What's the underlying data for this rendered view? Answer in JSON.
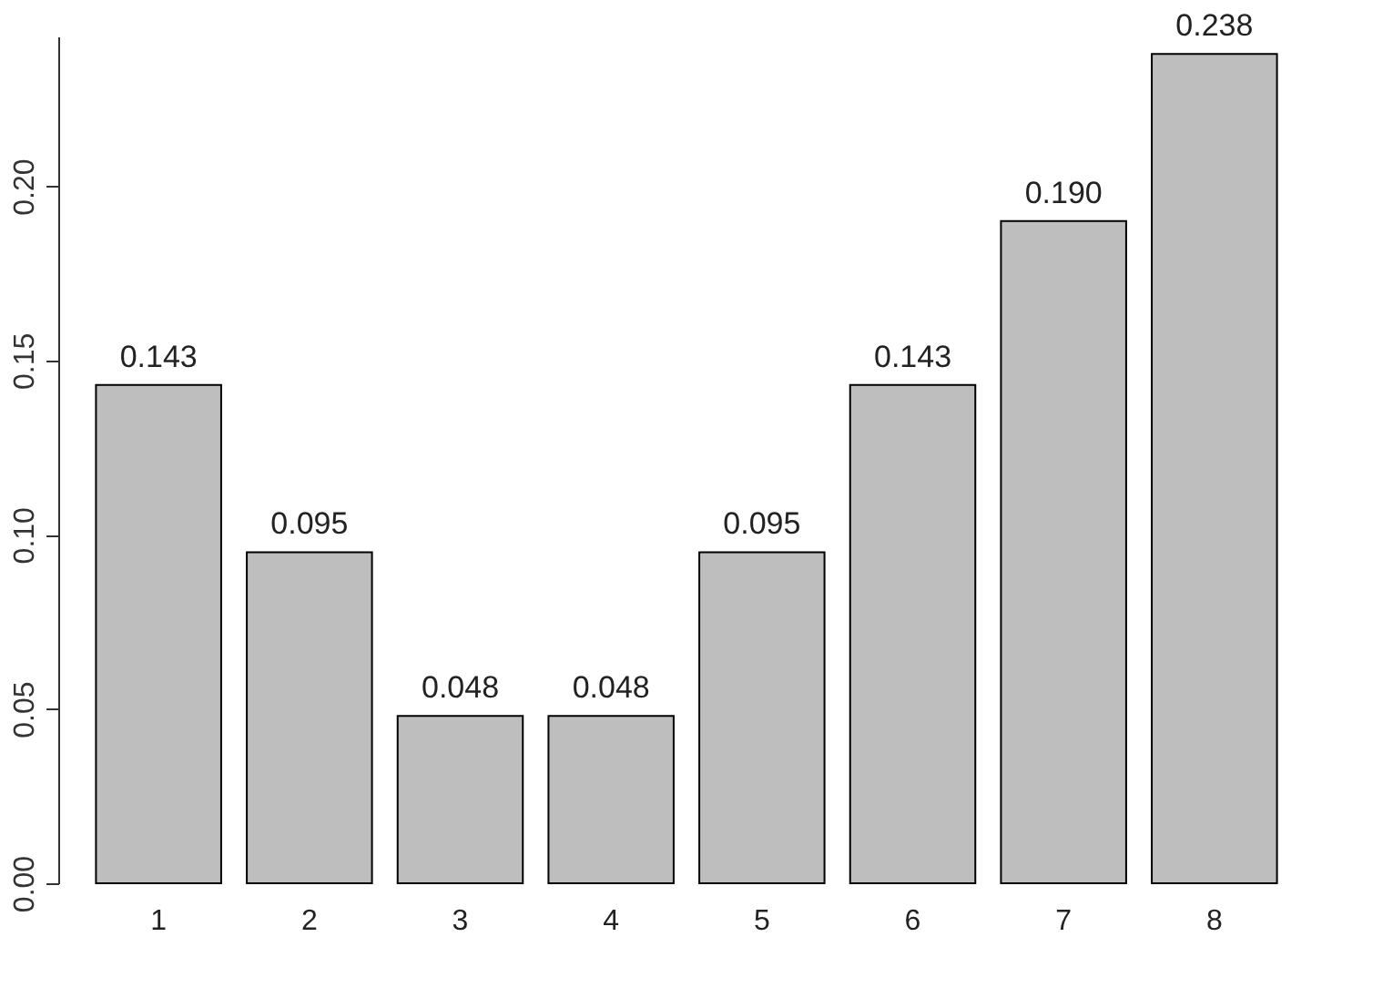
{
  "chart_data": {
    "type": "bar",
    "categories": [
      "1",
      "2",
      "3",
      "4",
      "5",
      "6",
      "7",
      "8"
    ],
    "values": [
      0.143,
      0.095,
      0.048,
      0.048,
      0.095,
      0.143,
      0.19,
      0.238
    ],
    "value_labels": [
      "0.143",
      "0.095",
      "0.048",
      "0.048",
      "0.095",
      "0.143",
      "0.190",
      "0.238"
    ],
    "color": "#bebebe",
    "ylim": [
      0,
      0.243
    ],
    "yticks": [
      {
        "value": 0,
        "label": "0.00"
      },
      {
        "value": 0.05,
        "label": "0.05"
      },
      {
        "value": 0.1,
        "label": "0.10"
      },
      {
        "value": 0.15,
        "label": "0.15"
      },
      {
        "value": 0.2,
        "label": "0.20"
      }
    ],
    "grid": false
  }
}
